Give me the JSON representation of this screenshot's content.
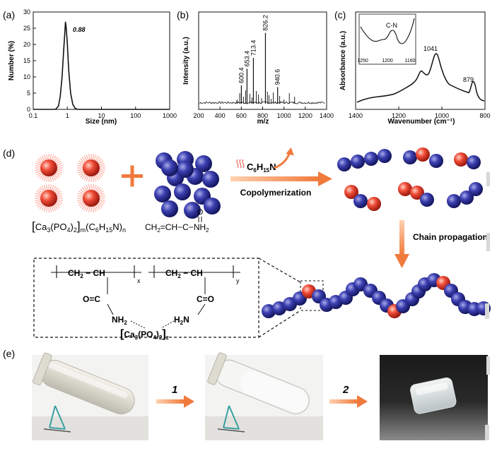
{
  "panels": {
    "a": "(a)",
    "b": "(b)",
    "c": "(c)",
    "d": "(d)",
    "e": "(e)"
  },
  "chart_data": [
    {
      "type": "line",
      "panel": "(a)",
      "xlabel": "Size (nm)",
      "ylabel": "Number (%)",
      "xscale": "log",
      "xlim": [
        0.1,
        1000
      ],
      "ylim": [
        0,
        30
      ],
      "xticks": [
        "0.1",
        "1",
        "10",
        "100",
        "1000"
      ],
      "yticks": [
        "0",
        "5",
        "10",
        "15",
        "20",
        "25",
        "30"
      ],
      "annotation": "0.88",
      "series": [
        {
          "x": [
            0.45,
            0.55,
            0.62,
            0.7,
            0.78,
            0.85,
            0.88,
            0.93,
            1.0,
            1.1,
            1.25,
            1.45,
            1.7,
            2.0
          ],
          "y": [
            0,
            1,
            4,
            10,
            18,
            24,
            27,
            25,
            20,
            12,
            5,
            1.5,
            0.3,
            0
          ]
        }
      ]
    },
    {
      "type": "bar",
      "panel": "(b)",
      "xlabel": "m/z",
      "ylabel": "Intensity (a.u.)",
      "xlim": [
        200,
        1400
      ],
      "xticks": [
        "200",
        "400",
        "600",
        "800",
        "1000",
        "1200",
        "1400"
      ],
      "peaks": [
        {
          "x": 600.4,
          "y": 0.22,
          "label": "600.4"
        },
        {
          "x": 653.4,
          "y": 0.42,
          "label": "653.4"
        },
        {
          "x": 713.4,
          "y": 0.55,
          "label": "713.4"
        },
        {
          "x": 826.2,
          "y": 0.85,
          "label": "826.2"
        },
        {
          "x": 940.6,
          "y": 0.2,
          "label": "940.6"
        }
      ]
    },
    {
      "type": "line",
      "panel": "(c)",
      "xlabel": "Wavenumber (cm⁻¹)",
      "ylabel": "Absorbance (a.u.)",
      "xlim": [
        1400,
        800
      ],
      "xticks": [
        "1400",
        "1200",
        "1000",
        "800"
      ],
      "peaks": [
        {
          "x": 1041,
          "label": "1041"
        },
        {
          "x": 879,
          "label": "879"
        }
      ],
      "inset": {
        "xticks": [
          "1250",
          "1200",
          "1160"
        ],
        "annotation": "C-N"
      }
    }
  ],
  "scheme": {
    "reagent": "C6H15N",
    "reagent_sub": "15",
    "step1": "Copolymerization",
    "step2": "Chain propagation",
    "left_formula": "[Ca3(PO4)2]m(C6H15N)n",
    "monomer": "CH2=CH−C−NH2",
    "monomer_o": "O",
    "polymer_left": "CH2−CH",
    "polymer_right": "CH2−CH",
    "sub_x": "x",
    "sub_y": "y",
    "c_o_left": "O=C",
    "c_o_right": "C=O",
    "nh2": "NH2",
    "h2n": "H2N",
    "core": "[Ca3(PO4)2]z"
  },
  "steps": {
    "one": "1",
    "two": "2"
  },
  "colors": {
    "blue": "#2b2e8f",
    "red": "#e03a2a",
    "arrow": "#f07a3c",
    "plus": "#f07a3c"
  }
}
